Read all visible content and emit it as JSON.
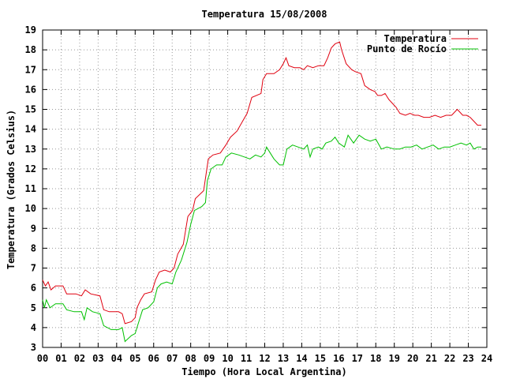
{
  "chart_data": {
    "type": "line",
    "title": "Temperatura 15/08/2008",
    "xlabel": "Tiempo (Hora Local Argentina)",
    "ylabel": "Temperatura (Grados Celsius)",
    "xlim": [
      0,
      24
    ],
    "ylim": [
      3,
      19
    ],
    "x_ticks": [
      "00",
      "01",
      "02",
      "03",
      "04",
      "05",
      "06",
      "07",
      "08",
      "09",
      "10",
      "11",
      "12",
      "13",
      "14",
      "15",
      "16",
      "17",
      "18",
      "19",
      "20",
      "21",
      "22",
      "23",
      "24"
    ],
    "y_ticks": [
      "3",
      "4",
      "5",
      "6",
      "7",
      "8",
      "9",
      "10",
      "11",
      "12",
      "13",
      "14",
      "15",
      "16",
      "17",
      "18",
      "19"
    ],
    "grid": true,
    "legend_position": "top-right",
    "series": [
      {
        "name": "Temperatura",
        "color": "#e0000f",
        "points": [
          [
            0.0,
            6.4
          ],
          [
            0.15,
            6.1
          ],
          [
            0.3,
            6.3
          ],
          [
            0.45,
            5.9
          ],
          [
            0.7,
            6.1
          ],
          [
            1.1,
            6.1
          ],
          [
            1.3,
            5.7
          ],
          [
            1.8,
            5.7
          ],
          [
            2.1,
            5.6
          ],
          [
            2.3,
            5.9
          ],
          [
            2.6,
            5.7
          ],
          [
            3.1,
            5.6
          ],
          [
            3.3,
            4.9
          ],
          [
            3.6,
            4.8
          ],
          [
            4.1,
            4.8
          ],
          [
            4.3,
            4.7
          ],
          [
            4.45,
            4.2
          ],
          [
            4.8,
            4.3
          ],
          [
            5.0,
            4.5
          ],
          [
            5.1,
            5.0
          ],
          [
            5.3,
            5.4
          ],
          [
            5.5,
            5.7
          ],
          [
            5.9,
            5.8
          ],
          [
            6.1,
            6.4
          ],
          [
            6.3,
            6.8
          ],
          [
            6.6,
            6.9
          ],
          [
            6.9,
            6.8
          ],
          [
            7.1,
            7.0
          ],
          [
            7.3,
            7.7
          ],
          [
            7.6,
            8.2
          ],
          [
            7.85,
            9.6
          ],
          [
            8.1,
            9.9
          ],
          [
            8.25,
            10.5
          ],
          [
            8.7,
            10.9
          ],
          [
            8.95,
            12.5
          ],
          [
            9.2,
            12.7
          ],
          [
            9.6,
            12.8
          ],
          [
            9.9,
            13.2
          ],
          [
            10.15,
            13.6
          ],
          [
            10.5,
            13.9
          ],
          [
            10.8,
            14.4
          ],
          [
            11.05,
            14.8
          ],
          [
            11.3,
            15.6
          ],
          [
            11.8,
            15.8
          ],
          [
            11.9,
            16.5
          ],
          [
            12.1,
            16.8
          ],
          [
            12.5,
            16.8
          ],
          [
            12.8,
            17.0
          ],
          [
            13.0,
            17.3
          ],
          [
            13.15,
            17.6
          ],
          [
            13.3,
            17.2
          ],
          [
            13.6,
            17.1
          ],
          [
            13.9,
            17.1
          ],
          [
            14.1,
            17.0
          ],
          [
            14.3,
            17.2
          ],
          [
            14.6,
            17.1
          ],
          [
            14.9,
            17.2
          ],
          [
            15.2,
            17.2
          ],
          [
            15.4,
            17.6
          ],
          [
            15.6,
            18.1
          ],
          [
            15.8,
            18.3
          ],
          [
            16.05,
            18.4
          ],
          [
            16.15,
            18.0
          ],
          [
            16.4,
            17.3
          ],
          [
            16.7,
            17.0
          ],
          [
            16.9,
            16.9
          ],
          [
            17.2,
            16.8
          ],
          [
            17.4,
            16.2
          ],
          [
            17.7,
            16.0
          ],
          [
            17.95,
            15.9
          ],
          [
            18.1,
            15.7
          ],
          [
            18.3,
            15.7
          ],
          [
            18.5,
            15.8
          ],
          [
            18.7,
            15.5
          ],
          [
            18.9,
            15.3
          ],
          [
            19.1,
            15.1
          ],
          [
            19.3,
            14.8
          ],
          [
            19.6,
            14.7
          ],
          [
            19.85,
            14.8
          ],
          [
            20.1,
            14.7
          ],
          [
            20.3,
            14.7
          ],
          [
            20.6,
            14.6
          ],
          [
            20.9,
            14.6
          ],
          [
            21.2,
            14.7
          ],
          [
            21.5,
            14.6
          ],
          [
            21.8,
            14.7
          ],
          [
            22.1,
            14.7
          ],
          [
            22.4,
            15.0
          ],
          [
            22.7,
            14.7
          ],
          [
            22.9,
            14.7
          ],
          [
            23.1,
            14.6
          ],
          [
            23.3,
            14.4
          ],
          [
            23.5,
            14.2
          ],
          [
            23.7,
            14.2
          ]
        ]
      },
      {
        "name": "Punto de Rocío",
        "color": "#00c000",
        "points": [
          [
            0.0,
            5.4
          ],
          [
            0.1,
            5.0
          ],
          [
            0.2,
            5.4
          ],
          [
            0.4,
            5.0
          ],
          [
            0.7,
            5.2
          ],
          [
            1.1,
            5.2
          ],
          [
            1.3,
            4.9
          ],
          [
            1.7,
            4.8
          ],
          [
            2.1,
            4.8
          ],
          [
            2.25,
            4.4
          ],
          [
            2.4,
            5.0
          ],
          [
            2.7,
            4.8
          ],
          [
            3.1,
            4.7
          ],
          [
            3.3,
            4.1
          ],
          [
            3.7,
            3.9
          ],
          [
            4.1,
            3.9
          ],
          [
            4.3,
            4.0
          ],
          [
            4.45,
            3.3
          ],
          [
            4.8,
            3.6
          ],
          [
            5.0,
            3.7
          ],
          [
            5.1,
            4.0
          ],
          [
            5.4,
            4.9
          ],
          [
            5.7,
            5.0
          ],
          [
            6.0,
            5.3
          ],
          [
            6.2,
            6.0
          ],
          [
            6.4,
            6.2
          ],
          [
            6.7,
            6.3
          ],
          [
            7.0,
            6.2
          ],
          [
            7.2,
            6.8
          ],
          [
            7.5,
            7.4
          ],
          [
            7.8,
            8.3
          ],
          [
            8.0,
            9.2
          ],
          [
            8.2,
            9.9
          ],
          [
            8.6,
            10.1
          ],
          [
            8.8,
            10.3
          ],
          [
            8.9,
            11.4
          ],
          [
            9.1,
            12.0
          ],
          [
            9.4,
            12.2
          ],
          [
            9.7,
            12.2
          ],
          [
            9.9,
            12.6
          ],
          [
            10.2,
            12.8
          ],
          [
            10.6,
            12.7
          ],
          [
            10.9,
            12.6
          ],
          [
            11.2,
            12.5
          ],
          [
            11.5,
            12.7
          ],
          [
            11.8,
            12.6
          ],
          [
            12.0,
            12.8
          ],
          [
            12.1,
            13.1
          ],
          [
            12.3,
            12.8
          ],
          [
            12.5,
            12.5
          ],
          [
            12.8,
            12.2
          ],
          [
            13.0,
            12.2
          ],
          [
            13.2,
            13.0
          ],
          [
            13.5,
            13.2
          ],
          [
            13.8,
            13.1
          ],
          [
            14.1,
            13.0
          ],
          [
            14.3,
            13.2
          ],
          [
            14.45,
            12.6
          ],
          [
            14.6,
            13.0
          ],
          [
            14.9,
            13.1
          ],
          [
            15.1,
            13.0
          ],
          [
            15.3,
            13.3
          ],
          [
            15.6,
            13.4
          ],
          [
            15.8,
            13.6
          ],
          [
            16.0,
            13.3
          ],
          [
            16.3,
            13.1
          ],
          [
            16.5,
            13.7
          ],
          [
            16.8,
            13.3
          ],
          [
            17.1,
            13.7
          ],
          [
            17.4,
            13.5
          ],
          [
            17.7,
            13.4
          ],
          [
            18.0,
            13.5
          ],
          [
            18.3,
            13.0
          ],
          [
            18.6,
            13.1
          ],
          [
            19.0,
            13.0
          ],
          [
            19.3,
            13.0
          ],
          [
            19.6,
            13.1
          ],
          [
            19.9,
            13.1
          ],
          [
            20.2,
            13.2
          ],
          [
            20.5,
            13.0
          ],
          [
            20.8,
            13.1
          ],
          [
            21.1,
            13.2
          ],
          [
            21.4,
            13.0
          ],
          [
            21.7,
            13.1
          ],
          [
            22.0,
            13.1
          ],
          [
            22.3,
            13.2
          ],
          [
            22.6,
            13.3
          ],
          [
            22.9,
            13.2
          ],
          [
            23.1,
            13.3
          ],
          [
            23.3,
            13.0
          ],
          [
            23.5,
            13.1
          ],
          [
            23.7,
            13.1
          ]
        ]
      }
    ]
  }
}
